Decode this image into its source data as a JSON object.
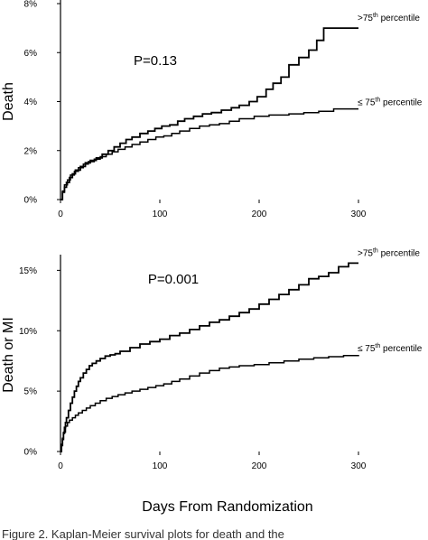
{
  "x_axis_label": "Days From Randomization",
  "caption": "Figure 2. Kaplan-Meier survival plots for death and the",
  "chart_data": [
    {
      "type": "line",
      "ylabel": "Death",
      "y_format": "percent",
      "xlim": [
        0,
        300
      ],
      "ylim": [
        0,
        8
      ],
      "xticks": [
        0,
        100,
        200,
        300
      ],
      "yticks": [
        0,
        2,
        4,
        6,
        8
      ],
      "x_tick_labels": [
        "0",
        "100",
        "200",
        "300"
      ],
      "y_tick_labels": [
        "0%",
        "2%",
        "4%",
        "6%",
        "8%"
      ],
      "annotation": "P=0.13",
      "grid": false,
      "legend": "labels at right end of lines",
      "series": [
        {
          "label_base": ">75",
          "label_sup": "th",
          "label_rest": " percentile",
          "x": [
            0,
            2,
            4,
            6,
            9,
            12,
            15,
            20,
            25,
            30,
            36,
            42,
            48,
            54,
            60,
            66,
            72,
            80,
            88,
            95,
            102,
            110,
            118,
            125,
            134,
            143,
            152,
            162,
            172,
            180,
            190,
            198,
            207,
            214,
            222,
            230,
            240,
            250,
            258,
            265,
            272,
            280,
            300
          ],
          "y": [
            0,
            0.3,
            0.5,
            0.7,
            0.9,
            1.05,
            1.2,
            1.35,
            1.5,
            1.6,
            1.7,
            1.85,
            2.0,
            2.15,
            2.3,
            2.45,
            2.55,
            2.7,
            2.8,
            2.9,
            3.0,
            3.05,
            3.2,
            3.3,
            3.4,
            3.5,
            3.55,
            3.65,
            3.75,
            3.85,
            4.0,
            4.2,
            4.5,
            4.75,
            5.0,
            5.5,
            5.8,
            6.1,
            6.5,
            7.0,
            7.0,
            7.0,
            7.0
          ]
        },
        {
          "label_base": "≤ 75",
          "label_sup": "th",
          "label_rest": " percentile",
          "x": [
            0,
            2,
            4,
            7,
            10,
            14,
            18,
            23,
            28,
            34,
            40,
            46,
            52,
            58,
            65,
            72,
            80,
            88,
            96,
            104,
            112,
            120,
            130,
            140,
            150,
            160,
            170,
            180,
            195,
            210,
            230,
            245,
            260,
            275,
            300
          ],
          "y": [
            0,
            0.35,
            0.6,
            0.8,
            1.0,
            1.15,
            1.3,
            1.45,
            1.55,
            1.65,
            1.75,
            1.85,
            1.95,
            2.05,
            2.15,
            2.25,
            2.35,
            2.45,
            2.55,
            2.6,
            2.7,
            2.8,
            2.9,
            3.0,
            3.05,
            3.1,
            3.2,
            3.3,
            3.4,
            3.45,
            3.5,
            3.55,
            3.6,
            3.7,
            3.7
          ]
        }
      ]
    },
    {
      "type": "line",
      "ylabel": "Death or MI",
      "y_format": "percent",
      "xlim": [
        0,
        300
      ],
      "ylim": [
        0,
        16
      ],
      "xticks": [
        0,
        100,
        200,
        300
      ],
      "yticks": [
        0,
        5,
        10,
        15
      ],
      "x_tick_labels": [
        "0",
        "100",
        "200",
        "300"
      ],
      "y_tick_labels": [
        "0%",
        "5%",
        "10%",
        "15%"
      ],
      "annotation": "P=0.001",
      "grid": false,
      "legend": "labels at right end of lines",
      "series": [
        {
          "label_base": ">75",
          "label_sup": "th",
          "label_rest": " percentile",
          "x": [
            0,
            1,
            2,
            3,
            4,
            5,
            6,
            8,
            10,
            12,
            14,
            16,
            18,
            20,
            23,
            26,
            29,
            32,
            36,
            40,
            45,
            50,
            55,
            60,
            70,
            80,
            90,
            100,
            110,
            120,
            130,
            140,
            150,
            160,
            170,
            180,
            190,
            200,
            210,
            220,
            230,
            240,
            250,
            260,
            270,
            280,
            290,
            300
          ],
          "y": [
            0,
            0.5,
            1.0,
            1.5,
            2.0,
            2.4,
            2.8,
            3.4,
            4.0,
            4.5,
            5.0,
            5.4,
            5.8,
            6.1,
            6.5,
            6.8,
            7.1,
            7.3,
            7.5,
            7.7,
            7.9,
            8.0,
            8.1,
            8.3,
            8.6,
            8.9,
            9.1,
            9.3,
            9.6,
            9.8,
            10.1,
            10.4,
            10.7,
            10.9,
            11.2,
            11.5,
            11.8,
            12.2,
            12.6,
            13.0,
            13.4,
            13.8,
            14.3,
            14.5,
            14.8,
            15.3,
            15.6,
            15.6
          ]
        },
        {
          "label_base": "≤ 75",
          "label_sup": "th",
          "label_rest": " percentile",
          "x": [
            0,
            1,
            2,
            3,
            5,
            7,
            9,
            12,
            15,
            18,
            22,
            26,
            30,
            35,
            40,
            46,
            52,
            58,
            65,
            72,
            80,
            88,
            96,
            104,
            112,
            120,
            130,
            140,
            150,
            160,
            170,
            180,
            195,
            210,
            225,
            240,
            255,
            270,
            285,
            300
          ],
          "y": [
            0,
            0.6,
            1.1,
            1.6,
            2.1,
            2.4,
            2.6,
            2.8,
            3.0,
            3.2,
            3.4,
            3.6,
            3.8,
            4.0,
            4.2,
            4.4,
            4.55,
            4.7,
            4.85,
            5.0,
            5.15,
            5.3,
            5.45,
            5.6,
            5.8,
            6.0,
            6.25,
            6.5,
            6.7,
            6.9,
            7.0,
            7.1,
            7.2,
            7.35,
            7.5,
            7.65,
            7.75,
            7.85,
            7.95,
            8.0
          ]
        }
      ]
    }
  ]
}
